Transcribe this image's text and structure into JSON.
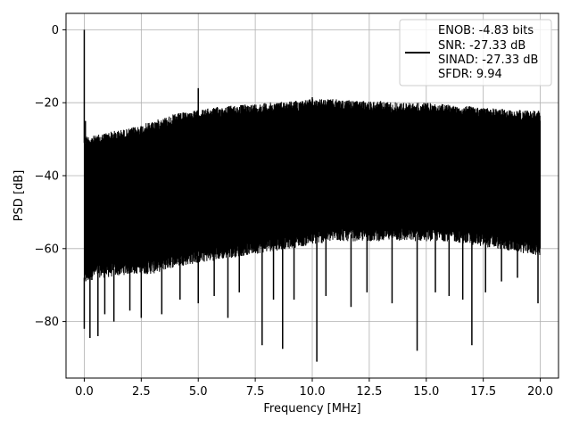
{
  "chart_data": {
    "type": "line",
    "title": "",
    "xlabel": "Frequency [MHz]",
    "ylabel": "PSD [dB]",
    "xlim": [
      -0.8,
      20.8
    ],
    "ylim": [
      -95.5,
      4.5
    ],
    "xticks": [
      0.0,
      2.5,
      5.0,
      7.5,
      10.0,
      12.5,
      15.0,
      17.5,
      20.0
    ],
    "xtick_labels": [
      "0.0",
      "2.5",
      "5.0",
      "7.5",
      "10.0",
      "12.5",
      "15.0",
      "17.5",
      "20.0"
    ],
    "yticks": [
      0,
      -20,
      -40,
      -60,
      -80
    ],
    "ytick_labels": [
      "0",
      "−20",
      "−40",
      "−60",
      "−80"
    ],
    "grid": true,
    "legend_position": "top-right",
    "legend_lines": [
      "ENOB: -4.83 bits",
      "SNR: -27.33 dB",
      "SINAD: -27.33 dB",
      "SFDR: 9.94"
    ],
    "series_color": "#000000",
    "envelope": {
      "x": [
        0.0,
        0.5,
        1.0,
        2.0,
        3.0,
        4.0,
        5.0,
        6.0,
        7.0,
        8.0,
        9.0,
        10.0,
        11.0,
        12.0,
        13.0,
        14.0,
        15.0,
        16.0,
        17.0,
        18.0,
        19.0,
        20.0
      ],
      "upper": [
        -29,
        -29,
        -28,
        -27,
        -25,
        -23,
        -22,
        -21,
        -20.5,
        -20,
        -19.5,
        -19,
        -19,
        -19.5,
        -19.5,
        -20,
        -20,
        -20.5,
        -21,
        -21.5,
        -22,
        -22
      ],
      "lower": [
        -70,
        -68,
        -68,
        -67,
        -67,
        -65,
        -64,
        -63,
        -62,
        -61,
        -60,
        -59,
        -58,
        -58,
        -58,
        -58,
        -58,
        -58,
        -59,
        -60,
        -61,
        -62
      ]
    },
    "peaks": [
      {
        "x": 0.0,
        "y": 0.0
      },
      {
        "x": 0.05,
        "y": -25.0
      },
      {
        "x": 5.0,
        "y": -16.0
      },
      {
        "x": 10.0,
        "y": -18.5
      }
    ],
    "dips": [
      {
        "x": 0.0,
        "y": -82.0
      },
      {
        "x": 0.25,
        "y": -84.5
      },
      {
        "x": 0.6,
        "y": -84.0
      },
      {
        "x": 0.9,
        "y": -78.0
      },
      {
        "x": 1.3,
        "y": -80.0
      },
      {
        "x": 2.0,
        "y": -77.0
      },
      {
        "x": 2.5,
        "y": -79.0
      },
      {
        "x": 3.4,
        "y": -78.0
      },
      {
        "x": 4.2,
        "y": -74.0
      },
      {
        "x": 5.0,
        "y": -75.0
      },
      {
        "x": 5.7,
        "y": -73.0
      },
      {
        "x": 6.3,
        "y": -79.0
      },
      {
        "x": 6.8,
        "y": -72.0
      },
      {
        "x": 7.8,
        "y": -86.5
      },
      {
        "x": 8.3,
        "y": -74.0
      },
      {
        "x": 8.7,
        "y": -87.5
      },
      {
        "x": 9.2,
        "y": -74.0
      },
      {
        "x": 10.2,
        "y": -91.0
      },
      {
        "x": 10.6,
        "y": -73.0
      },
      {
        "x": 11.7,
        "y": -76.0
      },
      {
        "x": 12.4,
        "y": -72.0
      },
      {
        "x": 13.5,
        "y": -75.0
      },
      {
        "x": 14.6,
        "y": -88.0
      },
      {
        "x": 15.4,
        "y": -72.0
      },
      {
        "x": 16.0,
        "y": -73.0
      },
      {
        "x": 16.6,
        "y": -74.0
      },
      {
        "x": 17.0,
        "y": -86.5
      },
      {
        "x": 17.6,
        "y": -72.0
      },
      {
        "x": 18.3,
        "y": -69.0
      },
      {
        "x": 19.0,
        "y": -68.0
      },
      {
        "x": 19.9,
        "y": -75.0
      }
    ]
  }
}
